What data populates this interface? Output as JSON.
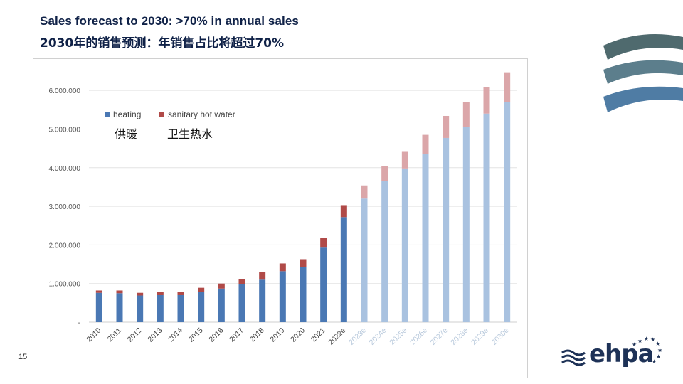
{
  "slide": {
    "title_en": "Sales forecast to 2030: >70% in annual sales",
    "title_zh": "2030年的销售预测：年销售占比将超过70%",
    "page_number": "15",
    "logo_text": "ehpa"
  },
  "colors": {
    "heating": "#4a78b4",
    "heating_forecast": "#a9c2e0",
    "sanitary": "#b04a48",
    "sanitary_forecast": "#dba6a9",
    "title": "#0f2147",
    "deco": [
      "#4f6a6e",
      "#5c7e8c",
      "#4f7ca4"
    ]
  },
  "chart_data": {
    "type": "bar",
    "stacked": true,
    "categories": [
      "2010",
      "2011",
      "2012",
      "2013",
      "2014",
      "2015",
      "2016",
      "2017",
      "2018",
      "2019",
      "2020",
      "2021",
      "2022e",
      "2023e",
      "2024e",
      "2025e",
      "2026e",
      "2027e",
      "2028e",
      "2029e",
      "2030e"
    ],
    "forecast_from_index": 13,
    "series": [
      {
        "name": "heating",
        "zh_label": "供暖",
        "values": [
          760000,
          750000,
          690000,
          700000,
          700000,
          780000,
          870000,
          990000,
          1100000,
          1320000,
          1430000,
          1930000,
          2720000,
          3200000,
          3650000,
          3980000,
          4350000,
          4770000,
          5060000,
          5400000,
          5700000
        ]
      },
      {
        "name": "sanitary hot water",
        "zh_label": "卫生热水",
        "values": [
          60000,
          70000,
          70000,
          80000,
          90000,
          110000,
          130000,
          130000,
          190000,
          200000,
          200000,
          250000,
          310000,
          340000,
          400000,
          430000,
          500000,
          570000,
          640000,
          680000,
          770000
        ]
      }
    ],
    "yticks": [
      "-",
      "1.000.000",
      "2.000.000",
      "3.000.000",
      "4.000.000",
      "5.000.000",
      "6.000.000"
    ],
    "ylim": [
      0,
      6500000
    ],
    "grid": true,
    "legend_position": "top-left"
  }
}
